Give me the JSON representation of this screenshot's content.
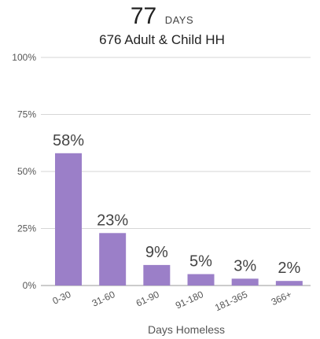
{
  "header": {
    "value": "77",
    "unit": "DAYS",
    "subtitle": "676 Adult & Child HH"
  },
  "chart_data": {
    "type": "bar",
    "categories": [
      "0-30",
      "31-60",
      "61-90",
      "91-180",
      "181-365",
      "366+"
    ],
    "values": [
      58,
      23,
      9,
      5,
      3,
      2
    ],
    "value_labels": [
      "58%",
      "23%",
      "9%",
      "5%",
      "3%",
      "2%"
    ],
    "xlabel": "Days Homeless",
    "ylabel": "",
    "ylim": [
      0,
      100
    ],
    "yticks": [
      0,
      25,
      50,
      75,
      100
    ],
    "ytick_labels": [
      "0%",
      "25%",
      "50%",
      "75%",
      "100%"
    ],
    "bar_color": "#9b7fc8",
    "grid": true
  }
}
